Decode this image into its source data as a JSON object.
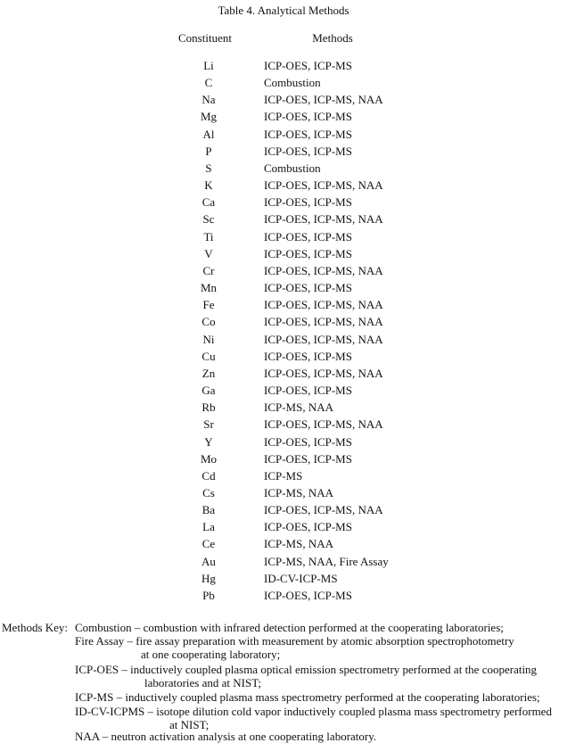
{
  "title": "Table 4.  Analytical Methods",
  "headers": {
    "constituent": "Constituent",
    "methods": "Methods"
  },
  "rows": [
    {
      "el": "Li",
      "m": "ICP-OES, ICP-MS"
    },
    {
      "el": "C",
      "m": "Combustion"
    },
    {
      "el": "Na",
      "m": "ICP-OES, ICP-MS, NAA"
    },
    {
      "el": "Mg",
      "m": "ICP-OES, ICP-MS"
    },
    {
      "el": "Al",
      "m": "ICP-OES, ICP-MS"
    },
    {
      "el": "P",
      "m": "ICP-OES, ICP-MS"
    },
    {
      "el": "S",
      "m": "Combustion"
    },
    {
      "el": "K",
      "m": "ICP-OES, ICP-MS, NAA"
    },
    {
      "el": "Ca",
      "m": "ICP-OES, ICP-MS"
    },
    {
      "el": "Sc",
      "m": "ICP-OES, ICP-MS, NAA"
    },
    {
      "el": "Ti",
      "m": "ICP-OES, ICP-MS"
    },
    {
      "el": "V",
      "m": "ICP-OES, ICP-MS"
    },
    {
      "el": "Cr",
      "m": "ICP-OES, ICP-MS, NAA"
    },
    {
      "el": "Mn",
      "m": "ICP-OES, ICP-MS"
    },
    {
      "el": "Fe",
      "m": "ICP-OES, ICP-MS, NAA"
    },
    {
      "el": "Co",
      "m": "ICP-OES, ICP-MS, NAA"
    },
    {
      "el": "Ni",
      "m": "ICP-OES, ICP-MS, NAA"
    },
    {
      "el": "Cu",
      "m": "ICP-OES, ICP-MS"
    },
    {
      "el": "Zn",
      "m": "ICP-OES, ICP-MS, NAA"
    },
    {
      "el": "Ga",
      "m": "ICP-OES, ICP-MS"
    },
    {
      "el": "Rb",
      "m": "ICP-MS, NAA"
    },
    {
      "el": "Sr",
      "m": "ICP-OES, ICP-MS, NAA"
    },
    {
      "el": "Y",
      "m": "ICP-OES, ICP-MS"
    },
    {
      "el": "Mo",
      "m": "ICP-OES, ICP-MS"
    },
    {
      "el": "Cd",
      "m": "ICP-MS"
    },
    {
      "el": "Cs",
      "m": "ICP-MS, NAA"
    },
    {
      "el": "Ba",
      "m": "ICP-OES, ICP-MS, NAA"
    },
    {
      "el": "La",
      "m": "ICP-OES, ICP-MS"
    },
    {
      "el": "Ce",
      "m": "ICP-MS, NAA"
    },
    {
      "el": "Au",
      "m": "ICP-MS, NAA, Fire Assay"
    },
    {
      "el": "Hg",
      "m": "ID-CV-ICP-MS"
    },
    {
      "el": "Pb",
      "m": "ICP-OES, ICP-MS"
    }
  ],
  "key": {
    "label": "Methods Key:",
    "lines": [
      "Combustion – combustion with infrared detection performed at the cooperating laboratories;",
      "Fire Assay – fire assay preparation with measurement by atomic absorption spectrophotometry",
      "at one cooperating laboratory;",
      "ICP-OES – inductively coupled plasma optical emission spectrometry performed at the cooperating",
      "laboratories and at NIST;",
      "ICP-MS – inductively coupled plasma mass spectrometry performed at the cooperating laboratories;",
      "ID-CV-ICPMS – isotope dilution cold vapor inductively coupled plasma mass spectrometry performed",
      "at NIST;",
      "NAA – neutron activation analysis at one cooperating laboratory."
    ]
  }
}
